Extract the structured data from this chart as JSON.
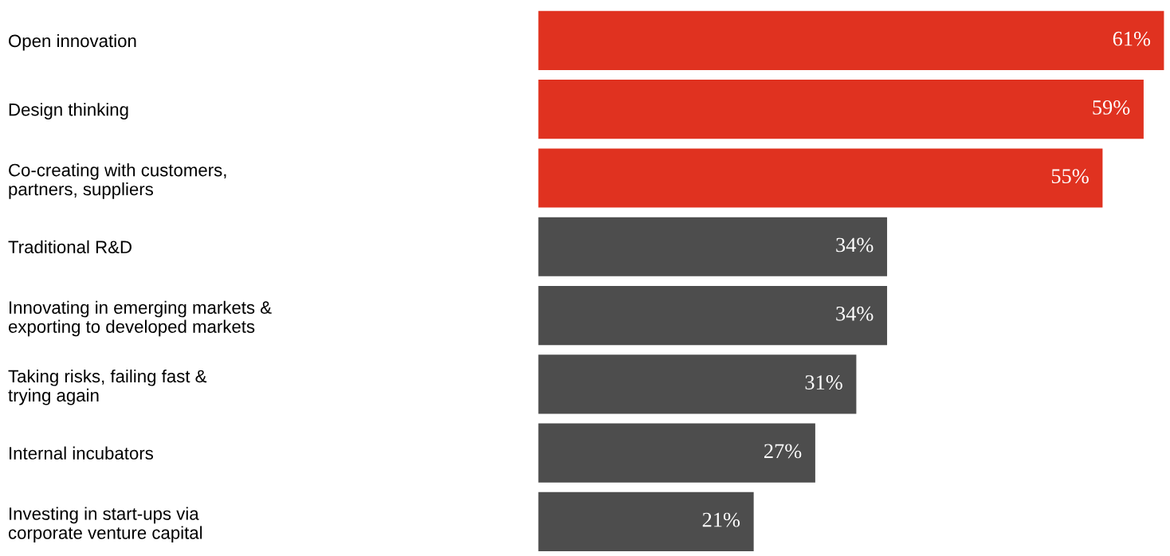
{
  "chart_data": {
    "type": "bar",
    "orientation": "horizontal",
    "categories": [
      "Open innovation",
      "Design thinking",
      "Co-creating with customers,\npartners, suppliers",
      "Traditional R&D",
      "Innovating in emerging markets &\nexporting to developed markets",
      "Taking risks, failing fast &\ntrying again",
      "Internal incubators",
      "Investing in start-ups via\ncorporate venture capital"
    ],
    "values": [
      61,
      59,
      55,
      34,
      34,
      31,
      27,
      21
    ],
    "colors": [
      "#e03220",
      "#e03220",
      "#e03220",
      "#4d4d4d",
      "#4d4d4d",
      "#4d4d4d",
      "#4d4d4d",
      "#4d4d4d"
    ],
    "value_labels": [
      "61%",
      "59%",
      "55%",
      "34%",
      "34%",
      "31%",
      "27%",
      "21%"
    ],
    "xlim": [
      0,
      61
    ],
    "tick_labels": "y",
    "grid": false,
    "legend": false
  }
}
